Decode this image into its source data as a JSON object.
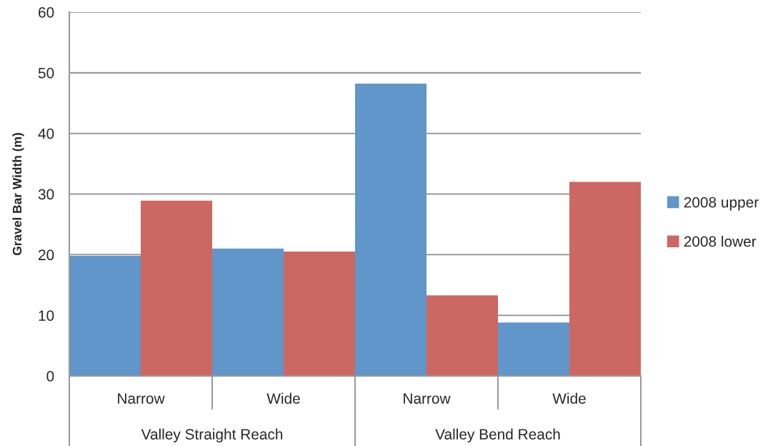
{
  "chart_data": {
    "type": "bar",
    "ylabel": "Gravel Bar Width (m)",
    "categories": [
      "Narrow",
      "Wide",
      "Narrow",
      "Wide"
    ],
    "annotations": [
      "Valley Straight Reach",
      "Valley Bend Reach"
    ],
    "series": [
      {
        "name": "2008 upper",
        "color": "#6096c9",
        "values": [
          19.8,
          21.0,
          48.2,
          8.8
        ]
      },
      {
        "name": "2008 lower",
        "color": "#cc6761",
        "values": [
          28.9,
          20.5,
          13.3,
          32.0
        ]
      }
    ],
    "ylim": [
      0,
      60
    ],
    "yticks": [
      0,
      10,
      20,
      30,
      40,
      50,
      60
    ],
    "grid": "y",
    "legend": "right"
  }
}
